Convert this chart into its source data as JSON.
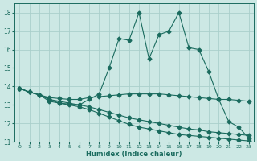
{
  "title": "",
  "xlabel": "Humidex (Indice chaleur)",
  "ylabel": "",
  "bg_color": "#cce8e4",
  "grid_color": "#aacfcb",
  "line_color": "#1a6b5e",
  "xlim": [
    -0.5,
    23.5
  ],
  "ylim": [
    11,
    18.5
  ],
  "xticks": [
    0,
    1,
    2,
    3,
    4,
    5,
    6,
    7,
    8,
    9,
    10,
    11,
    12,
    13,
    14,
    15,
    16,
    17,
    18,
    19,
    20,
    21,
    22,
    23
  ],
  "yticks": [
    11,
    12,
    13,
    14,
    15,
    16,
    17,
    18
  ],
  "series": [
    {
      "x": [
        0,
        1,
        2,
        3,
        4,
        5,
        6,
        7,
        8,
        9,
        10,
        11,
        12,
        13,
        14,
        15,
        16,
        17,
        18,
        19,
        20,
        21,
        22,
        23
      ],
      "y": [
        13.9,
        13.7,
        13.55,
        13.2,
        13.1,
        13.05,
        13.0,
        13.3,
        13.6,
        15.0,
        16.6,
        16.5,
        18.0,
        15.5,
        16.8,
        17.0,
        18.0,
        16.1,
        16.0,
        14.8,
        13.3,
        12.1,
        11.8,
        11.2
      ],
      "marker": "D",
      "markersize": 2.5
    },
    {
      "x": [
        0,
        1,
        2,
        3,
        4,
        5,
        6,
        7,
        8,
        9,
        10,
        11,
        12,
        13,
        14,
        15,
        16,
        17,
        18,
        19,
        20,
        21,
        22,
        23
      ],
      "y": [
        13.9,
        13.7,
        13.55,
        13.4,
        13.35,
        13.3,
        13.3,
        13.4,
        13.45,
        13.5,
        13.55,
        13.6,
        13.6,
        13.6,
        13.6,
        13.55,
        13.5,
        13.45,
        13.4,
        13.35,
        13.3,
        13.3,
        13.25,
        13.2
      ],
      "marker": "D",
      "markersize": 2.5
    },
    {
      "x": [
        0,
        1,
        2,
        3,
        4,
        5,
        6,
        7,
        8,
        9,
        10,
        11,
        12,
        13,
        14,
        15,
        16,
        17,
        18,
        19,
        20,
        21,
        22,
        23
      ],
      "y": [
        13.9,
        13.7,
        13.55,
        13.3,
        13.2,
        13.1,
        13.0,
        12.9,
        12.75,
        12.6,
        12.45,
        12.3,
        12.2,
        12.1,
        12.0,
        11.9,
        11.8,
        11.7,
        11.65,
        11.55,
        11.5,
        11.45,
        11.4,
        11.35
      ],
      "marker": "D",
      "markersize": 2.5
    },
    {
      "x": [
        0,
        1,
        2,
        3,
        4,
        5,
        6,
        7,
        8,
        9,
        10,
        11,
        12,
        13,
        14,
        15,
        16,
        17,
        18,
        19,
        20,
        21,
        22,
        23
      ],
      "y": [
        13.9,
        13.7,
        13.55,
        13.3,
        13.1,
        13.0,
        12.9,
        12.75,
        12.55,
        12.35,
        12.15,
        11.95,
        11.8,
        11.7,
        11.6,
        11.5,
        11.4,
        11.35,
        11.3,
        11.25,
        11.2,
        11.15,
        11.1,
        11.05
      ],
      "marker": "D",
      "markersize": 2.5
    }
  ]
}
